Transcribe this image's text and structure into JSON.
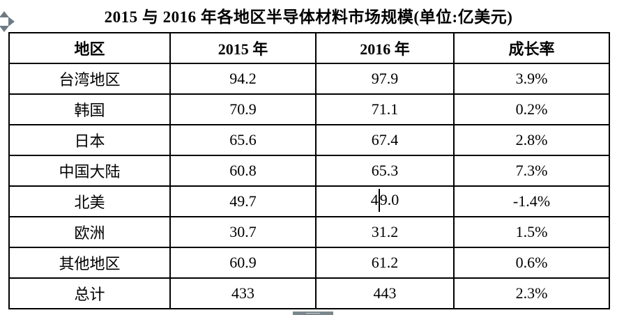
{
  "document": {
    "title": "2015 与 2016 年各地区半导体材料市场规模(单位:亿美元)"
  },
  "table": {
    "headers": [
      "地区",
      "2015 年",
      "2016 年",
      "成长率"
    ],
    "rows": [
      [
        "台湾地区",
        "94.2",
        "97.9",
        "3.9%"
      ],
      [
        "韩国",
        "70.9",
        "71.1",
        "0.2%"
      ],
      [
        "日本",
        "65.6",
        "67.4",
        "2.8%"
      ],
      [
        "中国大陆",
        "60.8",
        "65.3",
        "7.3%"
      ],
      [
        "北美",
        "49.7",
        "49.0",
        "-1.4%"
      ],
      [
        "欧洲",
        "30.7",
        "31.2",
        "1.5%"
      ],
      [
        "其他地区",
        "60.9",
        "61.2",
        "0.6%"
      ],
      [
        "总计",
        "433",
        "443",
        "2.3%"
      ]
    ],
    "caret": {
      "row_index": 4,
      "col_index": 2,
      "after_chars": 1
    }
  },
  "chart_data": {
    "type": "table",
    "title": "2015 与 2016 年各地区半导体材料市场规模(单位:亿美元)",
    "columns": [
      "地区",
      "2015 年",
      "2016 年",
      "成长率"
    ],
    "categories": [
      "台湾地区",
      "韩国",
      "日本",
      "中国大陆",
      "北美",
      "欧洲",
      "其他地区",
      "总计"
    ],
    "series": [
      {
        "name": "2015 年",
        "values": [
          94.2,
          70.9,
          65.6,
          60.8,
          49.7,
          30.7,
          60.9,
          433
        ]
      },
      {
        "name": "2016 年",
        "values": [
          97.9,
          71.1,
          67.4,
          65.3,
          49.0,
          31.2,
          61.2,
          443
        ]
      },
      {
        "name": "成长率",
        "values": [
          "3.9%",
          "0.2%",
          "2.8%",
          "7.3%",
          "-1.4%",
          "1.5%",
          "0.6%",
          "2.3%"
        ]
      }
    ]
  },
  "colors": {
    "border": "#000000",
    "handle_gray": "#6e7b85",
    "thumb_gray": "#7b878c"
  }
}
